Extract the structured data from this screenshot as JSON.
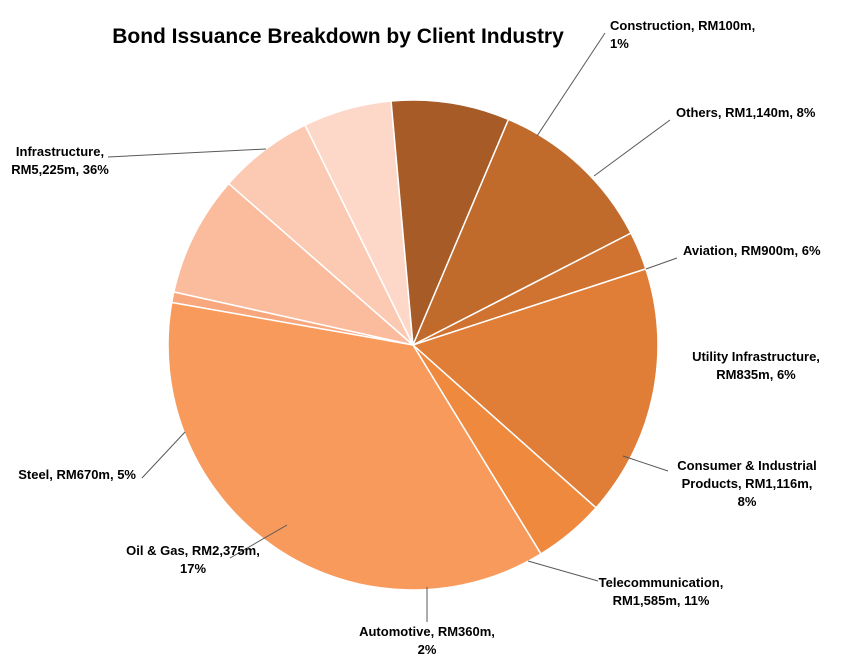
{
  "chart_data": {
    "type": "pie",
    "title": "Bond Issuance Breakdown by Client Industry",
    "slices": [
      {
        "name": "Construction",
        "value": 100,
        "pct": 1,
        "color": "#F9A77C",
        "label_lines": [
          "Construction, RM100m,",
          "1%"
        ]
      },
      {
        "name": "Others",
        "value": 1140,
        "pct": 8,
        "color": "#FBBB9D",
        "label_lines": [
          "Others, RM1,140m, 8%"
        ]
      },
      {
        "name": "Aviation",
        "value": 900,
        "pct": 6,
        "color": "#FCC9B2",
        "label_lines": [
          "Aviation, RM900m, 6%"
        ]
      },
      {
        "name": "Utility Infrastructure",
        "value": 835,
        "pct": 6,
        "color": "#FDD8C9",
        "label_lines": [
          "Utility Infrastructure,",
          "RM835m, 6%"
        ]
      },
      {
        "name": "Consumer & Industrial Products",
        "value": 1116,
        "pct": 8,
        "color": "#A75B26",
        "label_lines": [
          "Consumer & Industrial",
          "Products, RM1,116m,",
          "8%"
        ]
      },
      {
        "name": "Telecommunication",
        "value": 1585,
        "pct": 11,
        "color": "#C06A2C",
        "label_lines": [
          "Telecommunication,",
          "RM1,585m, 11%"
        ]
      },
      {
        "name": "Automotive",
        "value": 360,
        "pct": 2,
        "color": "#D07230",
        "label_lines": [
          "Automotive, RM360m,",
          "2%"
        ]
      },
      {
        "name": "Oil & Gas",
        "value": 2375,
        "pct": 17,
        "color": "#E07E38",
        "label_lines": [
          "Oil & Gas, RM2,375m,",
          "17%"
        ]
      },
      {
        "name": "Steel",
        "value": 670,
        "pct": 5,
        "color": "#EF893E",
        "label_lines": [
          "Steel, RM670m, 5%"
        ]
      },
      {
        "name": "Infrastructure",
        "value": 5225,
        "pct": 36,
        "color": "#F89A5C",
        "label_lines": [
          "Infrastructure,",
          "RM5,225m, 36%"
        ]
      }
    ],
    "legend": "none",
    "data_labels": "outside with leader lines"
  }
}
